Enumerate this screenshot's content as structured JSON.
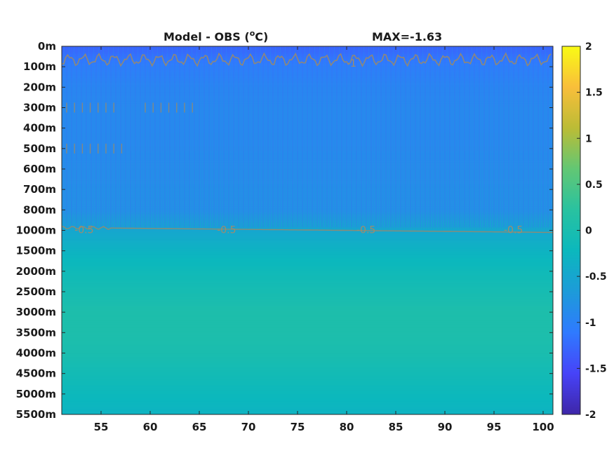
{
  "chart_data": {
    "type": "heatmap",
    "title_left": "Model - OBS (",
    "title_super": "o",
    "title_right": "C)",
    "title_max": "MAX=-1.63",
    "xlim": [
      51,
      101
    ],
    "x_ticks": [
      55,
      60,
      65,
      70,
      75,
      80,
      85,
      90,
      95,
      100
    ],
    "y_tick_labels": [
      "0m",
      "100m",
      "200m",
      "300m",
      "400m",
      "500m",
      "600m",
      "700m",
      "800m",
      "1000m",
      "1500m",
      "2000m",
      "2500m",
      "3000m",
      "3500m",
      "4000m",
      "4500m",
      "5000m",
      "5500m"
    ],
    "colorbar": {
      "range": [
        -2,
        2
      ],
      "ticks": [
        2,
        1.5,
        1,
        0.5,
        0,
        -0.5,
        -1,
        -1.5,
        -2
      ],
      "tick_labels": [
        "2",
        "1.5",
        "1",
        "0.5",
        "0",
        "-0.5",
        "-1",
        "-1.5",
        "-2"
      ],
      "colors": [
        "#3e26a8",
        "#4743f8",
        "#2f7aff",
        "#1d9bd9",
        "#0bb8bd",
        "#29c2a0",
        "#62c774",
        "#bbbc36",
        "#f9be3a",
        "#f9fb15"
      ]
    },
    "depth_field": [
      {
        "depth": "0m",
        "value": -1.3
      },
      {
        "depth": "100m",
        "value": -1.05
      },
      {
        "depth": "200m",
        "value": -0.95
      },
      {
        "depth": "300m",
        "value": -0.9
      },
      {
        "depth": "400m",
        "value": -0.9
      },
      {
        "depth": "500m",
        "value": -0.88
      },
      {
        "depth": "600m",
        "value": -0.85
      },
      {
        "depth": "700m",
        "value": -0.82
      },
      {
        "depth": "800m",
        "value": -0.8
      },
      {
        "depth": "1000m",
        "value": -0.5
      },
      {
        "depth": "1500m",
        "value": -0.3
      },
      {
        "depth": "2000m",
        "value": -0.15
      },
      {
        "depth": "2500m",
        "value": -0.05
      },
      {
        "depth": "3000m",
        "value": 0.05
      },
      {
        "depth": "3500m",
        "value": 0.05
      },
      {
        "depth": "4000m",
        "value": 0.0
      },
      {
        "depth": "4500m",
        "value": -0.1
      },
      {
        "depth": "5000m",
        "value": -0.2
      },
      {
        "depth": "5500m",
        "value": -0.3
      }
    ],
    "contour_labels": [
      {
        "text": "-0.5",
        "x": 52.3,
        "depth": "1000m"
      },
      {
        "text": "-0.5",
        "x": 66.8,
        "depth": "1000m"
      },
      {
        "text": "-0.5",
        "x": 81.0,
        "depth": "1000m"
      },
      {
        "text": "-0.5",
        "x": 96.0,
        "depth": "1000m"
      },
      {
        "text": "-1",
        "x": 80.0,
        "depth": "100m"
      }
    ]
  }
}
